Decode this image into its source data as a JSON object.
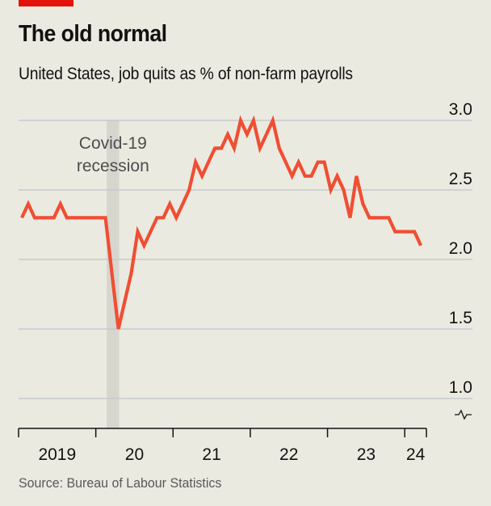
{
  "header": {
    "title": "The old normal",
    "subtitle": "United States, job quits as % of non-farm payrolls"
  },
  "footer": {
    "source": "Source: Bureau of Labour Statistics"
  },
  "colors": {
    "background": "#ebeae0",
    "line": "#f04e33",
    "brand_tag": "#e3120b",
    "gridline": "#c6c9cf",
    "recession_band": "#d6d6cf"
  },
  "chart_data": {
    "type": "line",
    "title": "The old normal",
    "subtitle": "United States, job quits as % of non-farm payrolls",
    "xlabel": "",
    "ylabel": "% of non-farm payrolls",
    "ylim": [
      0.8,
      3.0
    ],
    "y_axis_side": "right",
    "y_axis_broken": true,
    "yticks": [
      {
        "value": 3.0,
        "label": "3.0"
      },
      {
        "value": 2.5,
        "label": "2.5"
      },
      {
        "value": 2.0,
        "label": "2.0"
      },
      {
        "value": 1.5,
        "label": "1.5"
      },
      {
        "value": 1.0,
        "label": "1.0"
      }
    ],
    "xticks": [
      {
        "label": "2019",
        "year": 2019
      },
      {
        "label": "20",
        "year": 2020
      },
      {
        "label": "21",
        "year": 2021
      },
      {
        "label": "22",
        "year": 2022
      },
      {
        "label": "23",
        "year": 2023
      },
      {
        "label": "24",
        "year": 2024
      }
    ],
    "x_start": "2019-01",
    "x_end": "2024-03",
    "grid": true,
    "shaded_regions": [
      {
        "label_lines": [
          "Covid-19",
          "recession"
        ],
        "start": "2020-02",
        "end": "2020-04"
      }
    ],
    "series": [
      {
        "name": "Job quits rate",
        "frequency": "monthly",
        "start": "2019-01",
        "values": [
          2.3,
          2.4,
          2.3,
          2.3,
          2.3,
          2.3,
          2.4,
          2.3,
          2.3,
          2.3,
          2.3,
          2.3,
          2.3,
          2.3,
          1.9,
          1.5,
          1.7,
          1.9,
          2.2,
          2.1,
          2.2,
          2.3,
          2.3,
          2.4,
          2.3,
          2.4,
          2.5,
          2.7,
          2.6,
          2.7,
          2.8,
          2.8,
          2.9,
          2.8,
          3.0,
          2.9,
          3.0,
          2.8,
          2.9,
          3.0,
          2.8,
          2.7,
          2.6,
          2.7,
          2.6,
          2.6,
          2.7,
          2.7,
          2.5,
          2.6,
          2.5,
          2.3,
          2.6,
          2.4,
          2.3,
          2.3,
          2.3,
          2.3,
          2.2,
          2.2,
          2.2,
          2.2,
          2.1
        ]
      }
    ]
  }
}
